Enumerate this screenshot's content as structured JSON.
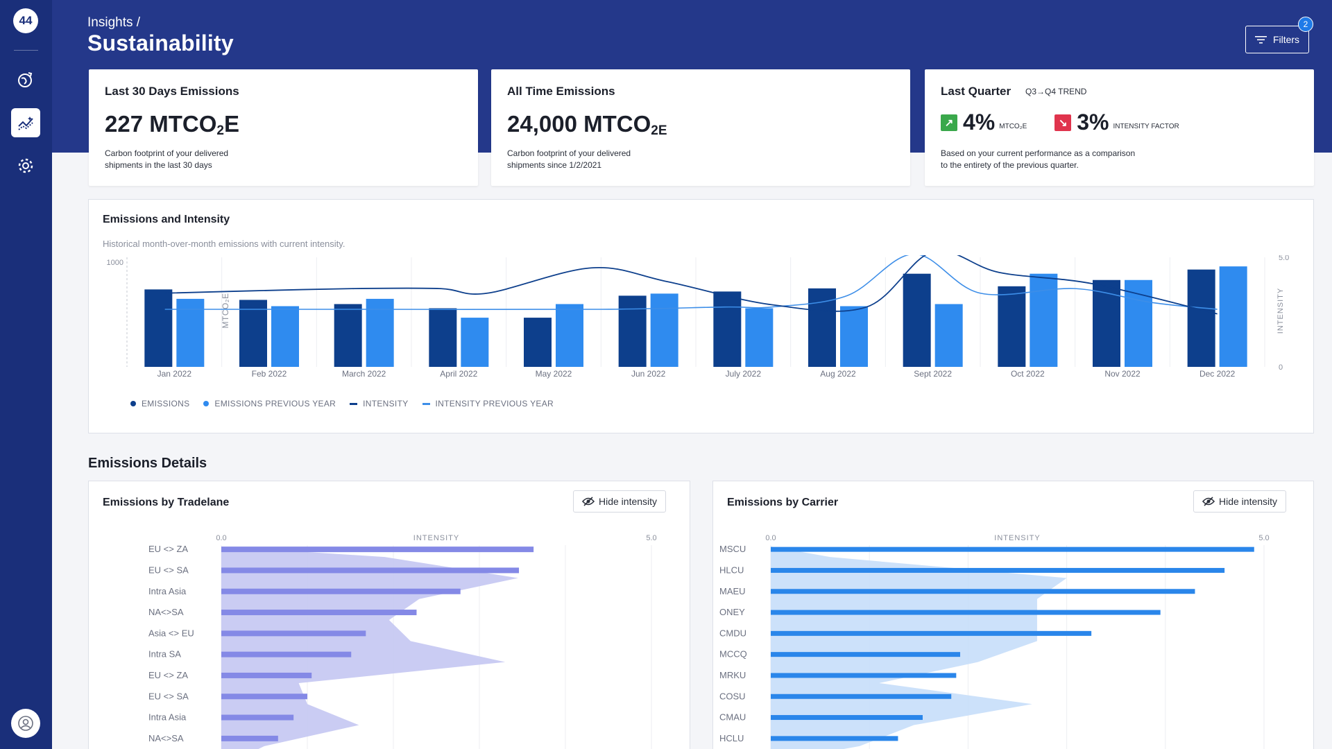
{
  "app": {
    "logo_text": "44"
  },
  "sidebar": {
    "items": [
      {
        "id": "global",
        "icon": "globe-icon"
      },
      {
        "id": "insights",
        "icon": "insights-chart-icon",
        "active": true
      },
      {
        "id": "settings",
        "icon": "gear-icon"
      }
    ],
    "avatar_icon": "user-avatar-icon"
  },
  "header": {
    "breadcrumb": "Insights /",
    "title": "Sustainability",
    "filters_label": "Filters",
    "filters_count": "2"
  },
  "kpis": {
    "last30": {
      "title": "Last 30 Days Emissions",
      "value": "227 MTCO",
      "value_sub": "2",
      "value_suffix": "E",
      "desc_line1": "Carbon footprint of your delivered",
      "desc_line2": "shipments in the last 30 days"
    },
    "alltime": {
      "title": "All Time Emissions",
      "value": "24,000 MTCO",
      "value_sub": "2E",
      "desc_line1": "Carbon footprint of your delivered",
      "desc_line2": "shipments since 1/2/2021"
    },
    "lastquarter": {
      "title": "Last Quarter",
      "trend_label": "Q3→Q4 TREND",
      "emissions_trend": "4%",
      "emissions_unit": "MTCO₂E",
      "intensity_trend": "3%",
      "intensity_unit": "INTENSITY FACTOR",
      "up_color": "#3aa84b",
      "down_color": "#e0344d",
      "desc_line1": "Based on your current performance as a comparison",
      "desc_line2": "to the entirety of the previous quarter."
    }
  },
  "emissions_panel": {
    "title": "Emissions and Intensity",
    "subtitle": "Historical month-over-month emissions with current intensity.",
    "y_left_label": "MTCO₂E",
    "y_left_tick": "1000",
    "y_right_label": "INTENSITY",
    "y_right_top": "5.0",
    "y_right_bottom": "0",
    "legend": {
      "emissions": "EMISSIONS",
      "emissions_prev": "EMISSIONS PREVIOUS YEAR",
      "intensity": "INTENSITY",
      "intensity_prev": "INTENSITY PREVIOUS YEAR"
    }
  },
  "details": {
    "section_title": "Emissions Details",
    "hide_label": "Hide intensity",
    "tradelane_title": "Emissions by Tradelane",
    "carrier_title": "Emissions by Carrier",
    "axis_min": "0.0",
    "axis_mid": "INTENSITY",
    "axis_max": "5.0"
  },
  "colors": {
    "navy": "#0d3f8c",
    "blue": "#2f8bef",
    "intensity_dark": "#0d3f8c",
    "intensity_light": "#3d8ee8",
    "tradelane_bar": "#8489e6",
    "tradelane_area": "#c4c7f2",
    "carrier_bar": "#2a86ea",
    "carrier_area": "#c6defa"
  },
  "chart_data": [
    {
      "type": "bar",
      "title": "Emissions and Intensity",
      "categories": [
        "Jan 2022",
        "Feb 2022",
        "March 2022",
        "April 2022",
        "May 2022",
        "Jun 2022",
        "July 2022",
        "Aug 2022",
        "Sept 2022",
        "Oct 2022",
        "Nov 2022",
        "Dec 2022"
      ],
      "series": [
        {
          "name": "EMISSIONS",
          "values": [
            740,
            640,
            600,
            560,
            470,
            680,
            720,
            750,
            890,
            770,
            830,
            930
          ]
        },
        {
          "name": "EMISSIONS PREVIOUS YEAR",
          "values": [
            650,
            580,
            650,
            470,
            600,
            700,
            560,
            580,
            600,
            890,
            830,
            960
          ]
        },
        {
          "name": "INTENSITY",
          "type": "line",
          "x": [
            0.4,
            1.3,
            2.4,
            3.3,
            3.8,
            4.9,
            5.7,
            6.8,
            7.8,
            8.5,
            9.2,
            10.2,
            11.5
          ],
          "values": [
            3.2,
            3.3,
            3.4,
            3.4,
            3.2,
            4.3,
            3.7,
            2.7,
            2.6,
            5.0,
            4.1,
            3.6,
            2.3
          ]
        },
        {
          "name": "INTENSITY PREVIOUS YEAR",
          "type": "line",
          "x": [
            0.4,
            2.5,
            5.0,
            6.3,
            6.8,
            7.6,
            8.3,
            9.0,
            10.0,
            10.8,
            11.5
          ],
          "values": [
            2.5,
            2.5,
            2.5,
            2.6,
            2.6,
            3.1,
            4.9,
            3.2,
            3.4,
            2.8,
            2.5
          ]
        }
      ],
      "y_left_tick": 1000,
      "y_right_range": [
        0,
        5.0
      ]
    },
    {
      "type": "bar",
      "title": "Emissions by Tradelane",
      "categories": [
        "EU <> ZA",
        "EU <> SA",
        "Intra Asia",
        "NA<>SA",
        "Asia <> EU",
        "Intra SA",
        "EU <> ZA",
        "EU <> SA",
        "Intra Asia",
        "NA<>SA"
      ],
      "values": [
        3.63,
        3.46,
        2.78,
        2.27,
        1.68,
        1.51,
        1.05,
        1.0,
        0.84,
        0.66
      ],
      "area_values": [
        1.9,
        3.45,
        2.3,
        1.95,
        2.2,
        3.3,
        0.9,
        1.0,
        1.6,
        0.5
      ],
      "xlim": [
        0,
        5.0
      ]
    },
    {
      "type": "bar",
      "title": "Emissions by Carrier",
      "categories": [
        "MSCU",
        "HLCU",
        "MAEU",
        "ONEY",
        "CMDU",
        "MCCQ",
        "MRKU",
        "COSU",
        "CMAU",
        "HCLU"
      ],
      "values": [
        4.9,
        4.6,
        4.3,
        3.95,
        3.25,
        1.92,
        1.88,
        1.83,
        1.54,
        1.29
      ],
      "area_values": [
        0.6,
        3.0,
        2.7,
        2.7,
        2.7,
        2.1,
        1.1,
        2.65,
        1.45,
        0.9
      ],
      "xlim": [
        0,
        5.0
      ]
    }
  ]
}
